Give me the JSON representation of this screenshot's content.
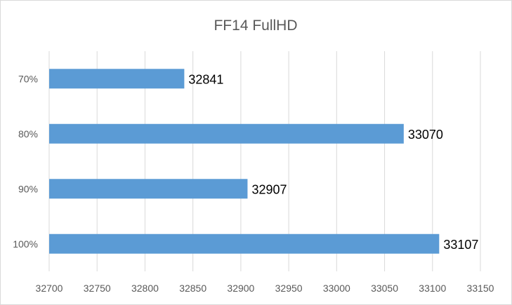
{
  "chart_data": {
    "type": "bar",
    "orientation": "horizontal",
    "title": "FF14 FullHD",
    "xlabel": "",
    "ylabel": "",
    "categories": [
      "70%",
      "80%",
      "90%",
      "100%"
    ],
    "values": [
      32841,
      33070,
      32907,
      33107
    ],
    "xlim": [
      32700,
      33150
    ],
    "x_ticks": [
      "32700",
      "32750",
      "32800",
      "32850",
      "32900",
      "32950",
      "33000",
      "33050",
      "33100",
      "33150"
    ],
    "grid": true,
    "legend": "none",
    "bar_color": "#5b9bd5",
    "grid_color": "#d9d9d9"
  }
}
